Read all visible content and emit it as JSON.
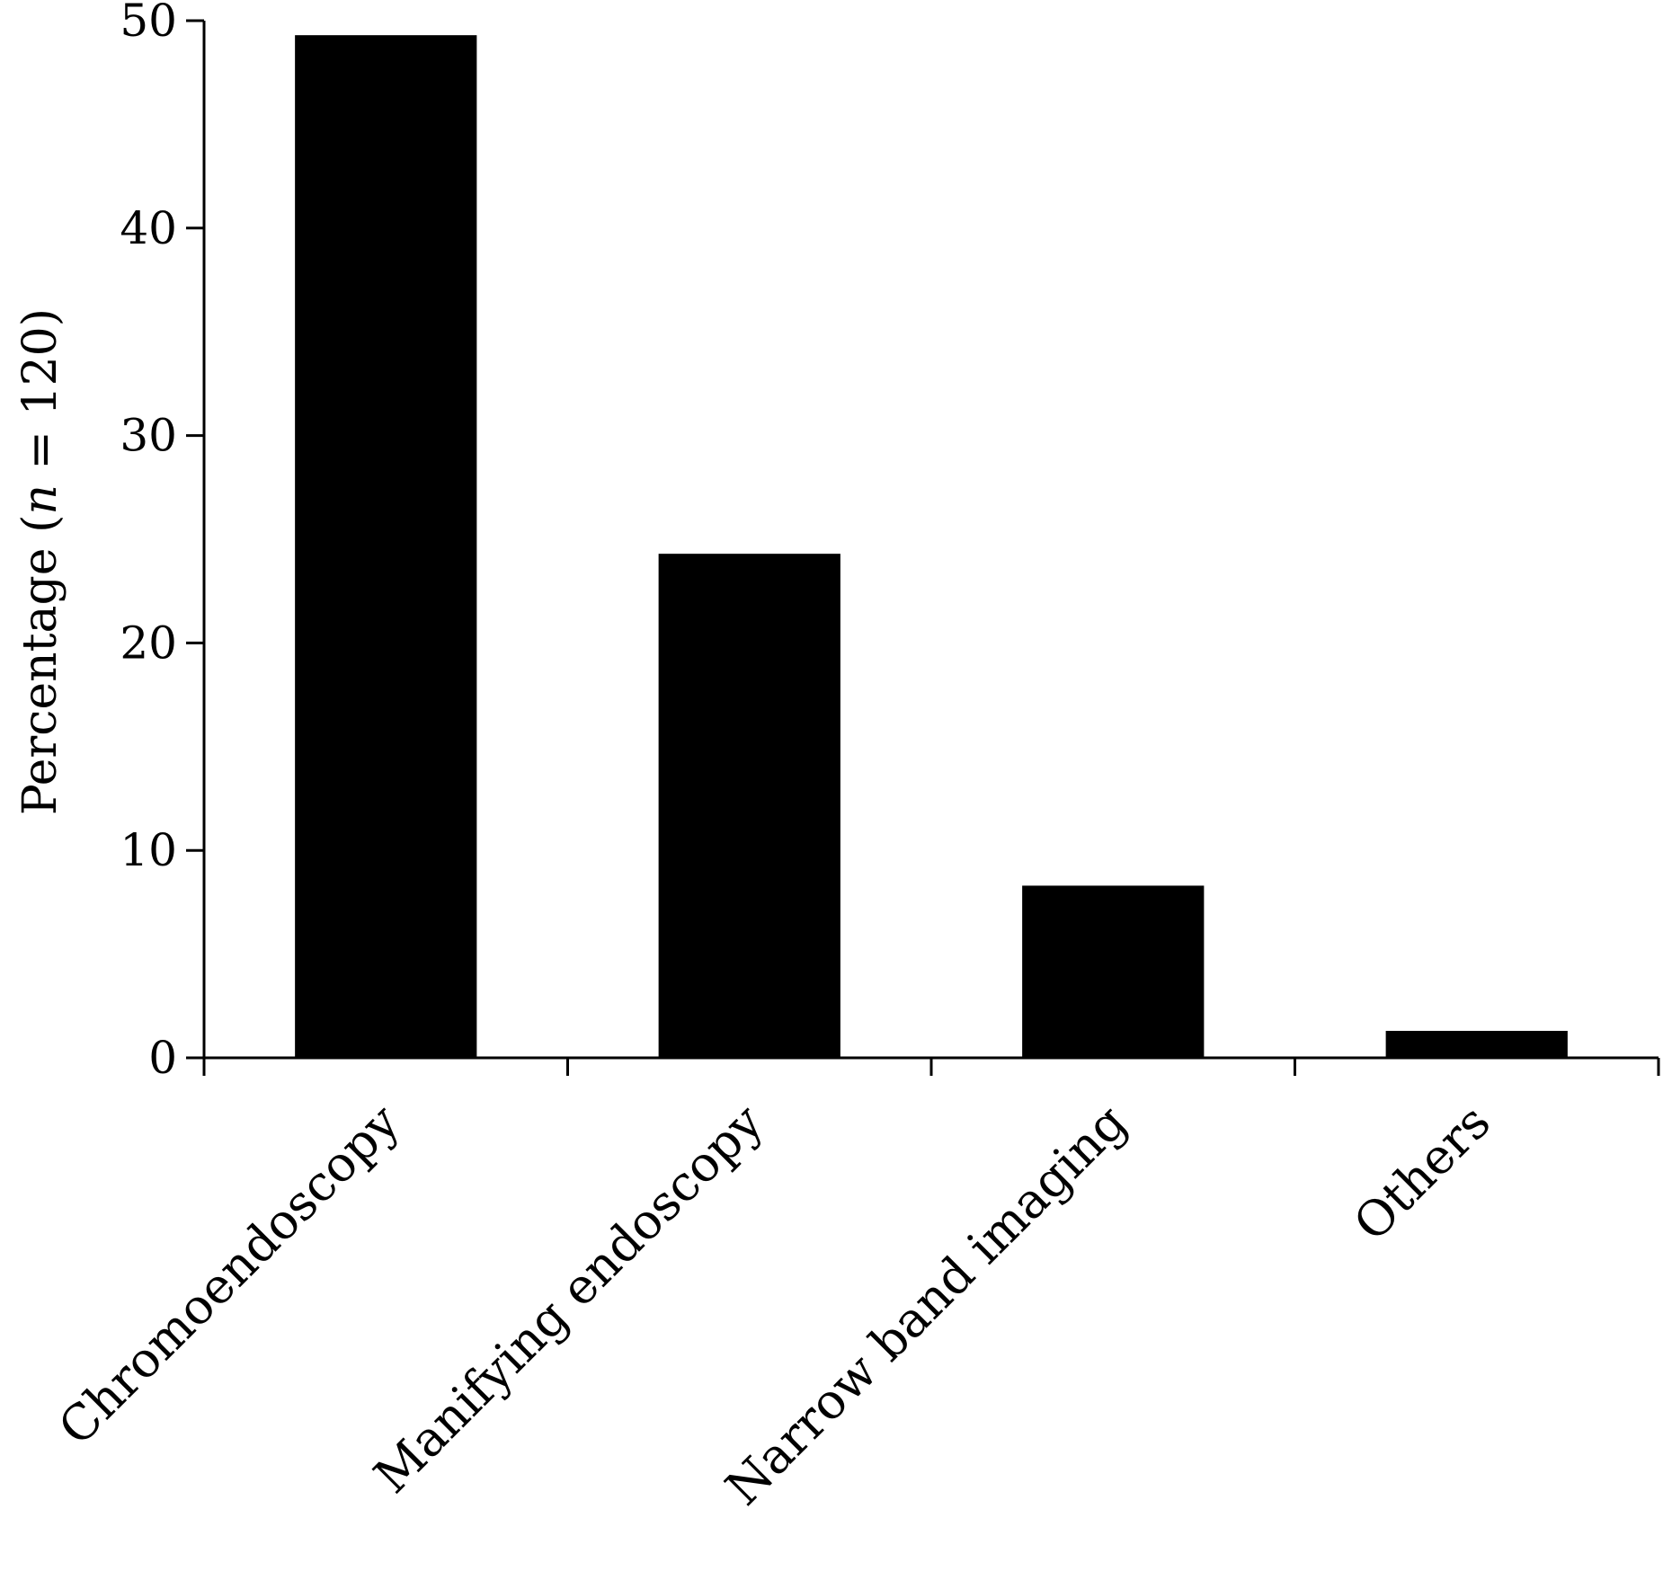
{
  "chart_data": {
    "type": "bar",
    "categories": [
      "Chromoendoscopy",
      "Manifying endoscopy",
      "Narrow band imaging",
      "Others"
    ],
    "values": [
      49.3,
      24.3,
      8.3,
      1.3
    ],
    "ylabel": {
      "prefix": "Percentage (",
      "italic": "n",
      "suffix": " = 120)"
    },
    "xlabel": "",
    "title": "",
    "ylim": [
      0,
      50
    ],
    "yticks": [
      0,
      10,
      20,
      30,
      40,
      50
    ],
    "grid": false,
    "colors": {
      "bar": "#000000",
      "axis": "#000000"
    }
  }
}
